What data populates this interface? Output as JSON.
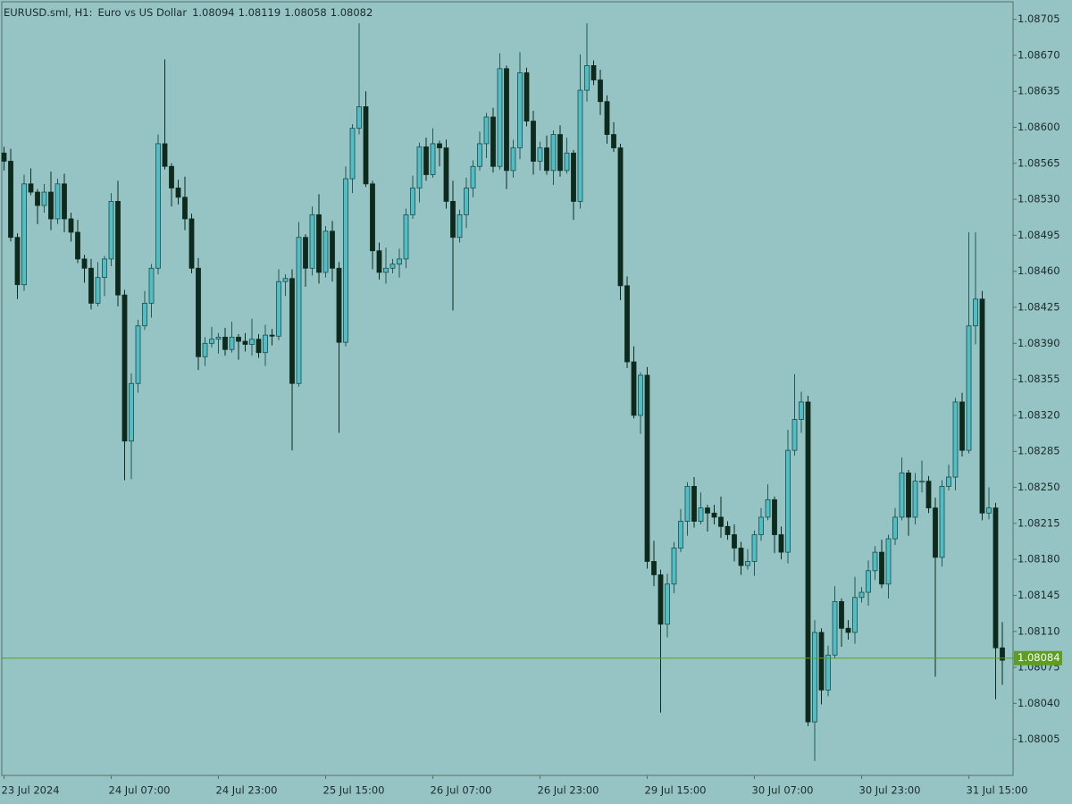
{
  "chart_data": {
    "type": "candlestick",
    "symbol": "EURUSD.sml, H1:",
    "description": "Euro vs US Dollar",
    "header_ohlc": [
      1.08094,
      1.08119,
      1.08058,
      1.08082
    ],
    "categories": [
      "23 Jul 2024",
      null,
      null,
      null,
      null,
      null,
      null,
      null,
      null,
      null,
      null,
      null,
      null,
      null,
      null,
      null,
      "24 Jul 07:00",
      null,
      null,
      null,
      null,
      null,
      null,
      null,
      null,
      null,
      null,
      null,
      null,
      null,
      null,
      null,
      "24 Jul 23:00",
      null,
      null,
      null,
      null,
      null,
      null,
      null,
      null,
      null,
      null,
      null,
      null,
      null,
      null,
      null,
      "25 Jul 15:00",
      null,
      null,
      null,
      null,
      null,
      null,
      null,
      null,
      null,
      null,
      null,
      null,
      null,
      null,
      null,
      "26 Jul 07:00",
      null,
      null,
      null,
      null,
      null,
      null,
      null,
      null,
      null,
      null,
      null,
      null,
      null,
      null,
      null,
      "26 Jul 23:00",
      null,
      null,
      null,
      null,
      null,
      null,
      null,
      null,
      null,
      null,
      null,
      null,
      null,
      null,
      null,
      "29 Jul 15:00",
      null,
      null,
      null,
      null,
      null,
      null,
      null,
      null,
      null,
      null,
      null,
      null,
      null,
      null,
      null,
      "30 Jul 07:00",
      null,
      null,
      null,
      null,
      null,
      null,
      null,
      null,
      null,
      null,
      null,
      null,
      null,
      null,
      null,
      "30 Jul 23:00",
      null,
      null,
      null,
      null,
      null,
      null,
      null,
      null,
      null,
      null,
      null,
      null,
      null,
      null,
      null,
      "31 Jul 15:00",
      null,
      null,
      null,
      null,
      null
    ],
    "open": [
      1.08575,
      1.08567,
      1.08493,
      1.08447,
      1.08545,
      1.08537,
      1.08524,
      1.08537,
      1.08511,
      1.08545,
      1.08511,
      1.08498,
      1.08472,
      1.08463,
      1.08429,
      1.08454,
      1.08472,
      1.08528,
      1.08437,
      1.08295,
      1.08351,
      1.08407,
      1.08429,
      1.08463,
      1.08584,
      1.08562,
      1.08541,
      1.08532,
      1.08511,
      1.08463,
      1.08377,
      1.0839,
      1.08394,
      1.08396,
      1.08384,
      1.08396,
      1.08392,
      1.08389,
      1.08394,
      1.08381,
      1.08398,
      1.08397,
      1.0845,
      1.08453,
      1.08351,
      1.08493,
      1.08463,
      1.08515,
      1.08459,
      1.08499,
      1.08463,
      1.08391,
      1.0855,
      1.08599,
      1.0862,
      1.08545,
      1.0848,
      1.08459,
      1.08463,
      1.08467,
      1.08472,
      1.08515,
      1.08541,
      1.08581,
      1.08554,
      1.08584,
      1.0858,
      1.08528,
      1.08493,
      1.08515,
      1.08541,
      1.08562,
      1.08584,
      1.0861,
      1.08562,
      1.08657,
      1.08558,
      1.0858,
      1.08653,
      1.08606,
      1.08567,
      1.0858,
      1.08558,
      1.08593,
      1.08558,
      1.08575,
      1.08528,
      1.08636,
      1.0866,
      1.08646,
      1.08625,
      1.08593,
      1.0858,
      1.08446,
      1.08372,
      1.0832,
      1.08359,
      1.08178,
      1.08165,
      1.08117,
      1.08156,
      1.08191,
      1.08217,
      1.08251,
      1.08217,
      1.0823,
      1.08225,
      1.08221,
      1.08212,
      1.08204,
      1.08191,
      1.08174,
      1.08178,
      1.08204,
      1.08221,
      1.08238,
      1.08204,
      1.08187,
      1.08286,
      1.08316,
      1.08333,
      1.08022,
      1.08109,
      1.08053,
      1.08087,
      1.08139,
      1.08113,
      1.08109,
      1.08143,
      1.08148,
      1.08169,
      1.08187,
      1.08156,
      1.082,
      1.08221,
      1.08264,
      1.08221,
      1.08256,
      1.08256,
      1.0823,
      1.08182,
      1.08251,
      1.0826,
      1.08333,
      1.08286,
      1.08407,
      1.08433,
      1.08225,
      1.0823,
      1.08094
    ],
    "high": [
      1.08581,
      1.08579,
      1.08497,
      1.08554,
      1.0856,
      1.0854,
      1.08545,
      1.08557,
      1.0855,
      1.08555,
      1.08517,
      1.0851,
      1.08476,
      1.08472,
      1.08469,
      1.08475,
      1.08536,
      1.08548,
      1.08442,
      1.08361,
      1.08413,
      1.08441,
      1.08467,
      1.08593,
      1.08666,
      1.08565,
      1.08549,
      1.08552,
      1.08516,
      1.08473,
      1.08396,
      1.08406,
      1.084,
      1.08405,
      1.08411,
      1.08399,
      1.084,
      1.08414,
      1.08399,
      1.08408,
      1.08404,
      1.08462,
      1.08457,
      1.08462,
      1.08508,
      1.08496,
      1.08523,
      1.08535,
      1.08504,
      1.08509,
      1.08469,
      1.08562,
      1.08603,
      1.08701,
      1.08635,
      1.08548,
      1.08488,
      1.08483,
      1.08472,
      1.08482,
      1.08521,
      1.08553,
      1.08585,
      1.0859,
      1.08599,
      1.08587,
      1.08588,
      1.08548,
      1.0852,
      1.08551,
      1.08568,
      1.08596,
      1.08614,
      1.08619,
      1.08672,
      1.0866,
      1.08588,
      1.08673,
      1.08658,
      1.08616,
      1.08586,
      1.08592,
      1.08597,
      1.08602,
      1.0859,
      1.08578,
      1.08671,
      1.08701,
      1.08665,
      1.08656,
      1.08631,
      1.08605,
      1.08584,
      1.08455,
      1.08387,
      1.08362,
      1.08367,
      1.08198,
      1.0817,
      1.08166,
      1.08197,
      1.08229,
      1.08255,
      1.0826,
      1.08245,
      1.08233,
      1.08233,
      1.08241,
      1.08217,
      1.08214,
      1.08197,
      1.0819,
      1.08208,
      1.0823,
      1.08253,
      1.08241,
      1.08212,
      1.08306,
      1.0836,
      1.08343,
      1.08339,
      1.08121,
      1.08113,
      1.08096,
      1.08154,
      1.08142,
      1.08121,
      1.08163,
      1.08153,
      1.08179,
      1.08193,
      1.08199,
      1.08204,
      1.0823,
      1.08279,
      1.08267,
      1.08264,
      1.08276,
      1.08261,
      1.0824,
      1.08257,
      1.08272,
      1.08337,
      1.08342,
      1.08498,
      1.08498,
      1.08441,
      1.0825,
      1.08235,
      1.08119
    ],
    "low": [
      1.08558,
      1.08489,
      1.08433,
      1.08441,
      1.08534,
      1.08506,
      1.08517,
      1.085,
      1.08506,
      1.08498,
      1.08489,
      1.08468,
      1.08449,
      1.08423,
      1.08426,
      1.08436,
      1.08465,
      1.08426,
      1.08257,
      1.08258,
      1.08342,
      1.08403,
      1.08415,
      1.08457,
      1.08559,
      1.08523,
      1.08525,
      1.085,
      1.08458,
      1.08364,
      1.08368,
      1.08386,
      1.0838,
      1.08378,
      1.08381,
      1.08374,
      1.08382,
      1.08378,
      1.08376,
      1.08368,
      1.08388,
      1.08393,
      1.08436,
      1.08286,
      1.08348,
      1.08445,
      1.08456,
      1.08448,
      1.08454,
      1.0845,
      1.08303,
      1.08387,
      1.08536,
      1.08593,
      1.08542,
      1.08462,
      1.08452,
      1.08448,
      1.08458,
      1.08454,
      1.08463,
      1.08511,
      1.08527,
      1.08548,
      1.08551,
      1.08562,
      1.08521,
      1.08422,
      1.08488,
      1.08502,
      1.08532,
      1.08558,
      1.0857,
      1.08556,
      1.08559,
      1.0854,
      1.08551,
      1.08569,
      1.08601,
      1.08554,
      1.08558,
      1.08554,
      1.08544,
      1.08552,
      1.08555,
      1.0851,
      1.08521,
      1.08625,
      1.08641,
      1.08612,
      1.08584,
      1.08576,
      1.08432,
      1.08366,
      1.08317,
      1.08302,
      1.08171,
      1.08154,
      1.08031,
      1.08104,
      1.08147,
      1.08187,
      1.08203,
      1.08211,
      1.08214,
      1.08207,
      1.08214,
      1.08201,
      1.08199,
      1.08178,
      1.08165,
      1.0817,
      1.08164,
      1.08198,
      1.08218,
      1.08186,
      1.0818,
      1.08176,
      1.08281,
      1.08303,
      1.08018,
      1.07984,
      1.08039,
      1.08047,
      1.08084,
      1.08095,
      1.08102,
      1.08098,
      1.08138,
      1.08135,
      1.0816,
      1.08152,
      1.08142,
      1.08194,
      1.08218,
      1.08203,
      1.08214,
      1.08245,
      1.08225,
      1.08066,
      1.08173,
      1.08247,
      1.08247,
      1.0828,
      1.08283,
      1.08389,
      1.08218,
      1.08219,
      1.08044,
      1.08058
    ],
    "close": [
      1.08567,
      1.08493,
      1.08447,
      1.08545,
      1.08537,
      1.08524,
      1.08537,
      1.08511,
      1.08545,
      1.08511,
      1.08498,
      1.08472,
      1.08463,
      1.08429,
      1.08454,
      1.08472,
      1.08528,
      1.08437,
      1.08295,
      1.08351,
      1.08407,
      1.08429,
      1.08463,
      1.08584,
      1.08562,
      1.08541,
      1.08532,
      1.08511,
      1.08463,
      1.08377,
      1.0839,
      1.08394,
      1.08396,
      1.08384,
      1.08396,
      1.08392,
      1.08389,
      1.08394,
      1.08381,
      1.08398,
      1.08397,
      1.0845,
      1.08453,
      1.08351,
      1.08493,
      1.08463,
      1.08515,
      1.08459,
      1.08499,
      1.08463,
      1.08391,
      1.0855,
      1.08599,
      1.0862,
      1.08545,
      1.0848,
      1.08459,
      1.08463,
      1.08467,
      1.08472,
      1.08515,
      1.08541,
      1.08581,
      1.08554,
      1.08584,
      1.0858,
      1.08528,
      1.08493,
      1.08515,
      1.08541,
      1.08562,
      1.08584,
      1.0861,
      1.08562,
      1.08657,
      1.08558,
      1.0858,
      1.08653,
      1.08606,
      1.08567,
      1.0858,
      1.08558,
      1.08593,
      1.08558,
      1.08575,
      1.08528,
      1.08636,
      1.0866,
      1.08646,
      1.08625,
      1.08593,
      1.0858,
      1.08446,
      1.08372,
      1.0832,
      1.08359,
      1.08178,
      1.08165,
      1.08117,
      1.08156,
      1.08191,
      1.08217,
      1.08251,
      1.08217,
      1.0823,
      1.08225,
      1.08221,
      1.08212,
      1.08204,
      1.08191,
      1.08174,
      1.08178,
      1.08204,
      1.08221,
      1.08238,
      1.08204,
      1.08187,
      1.08286,
      1.08316,
      1.08333,
      1.08022,
      1.08109,
      1.08053,
      1.08087,
      1.08139,
      1.08113,
      1.08109,
      1.08143,
      1.08148,
      1.08169,
      1.08187,
      1.08156,
      1.082,
      1.08221,
      1.08264,
      1.08221,
      1.08256,
      1.08256,
      1.0823,
      1.08182,
      1.08251,
      1.0826,
      1.08333,
      1.08286,
      1.08407,
      1.08433,
      1.08225,
      1.0823,
      1.08094,
      1.08082
    ],
    "bull_color": "#4fbfc7",
    "bear_color": "#0e2a1c",
    "ylim": [
      1.0797,
      1.08722
    ],
    "yticks": [
      1.08705,
      {
        "value": 1.0867,
        "label": "1.08670"
      },
      1.08635,
      {
        "value": 1.086,
        "label": "1.08600"
      },
      1.08565,
      {
        "value": 1.0853,
        "label": "1.08530"
      },
      1.08495,
      {
        "value": 1.0846,
        "label": "1.08460"
      },
      1.08425,
      {
        "value": 1.0839,
        "label": "1.08390"
      },
      1.08355,
      {
        "value": 1.0832,
        "label": "1.08320"
      },
      1.08285,
      {
        "value": 1.0825,
        "label": "1.08250"
      },
      1.08215,
      {
        "value": 1.0818,
        "label": "1.08180"
      },
      1.08145,
      {
        "value": 1.0811,
        "label": "1.08110"
      },
      1.08075,
      {
        "value": 1.0804,
        "label": "1.08040"
      },
      1.08005
    ],
    "current_price": 1.08084,
    "price_line_color": "#5d9e1c"
  }
}
